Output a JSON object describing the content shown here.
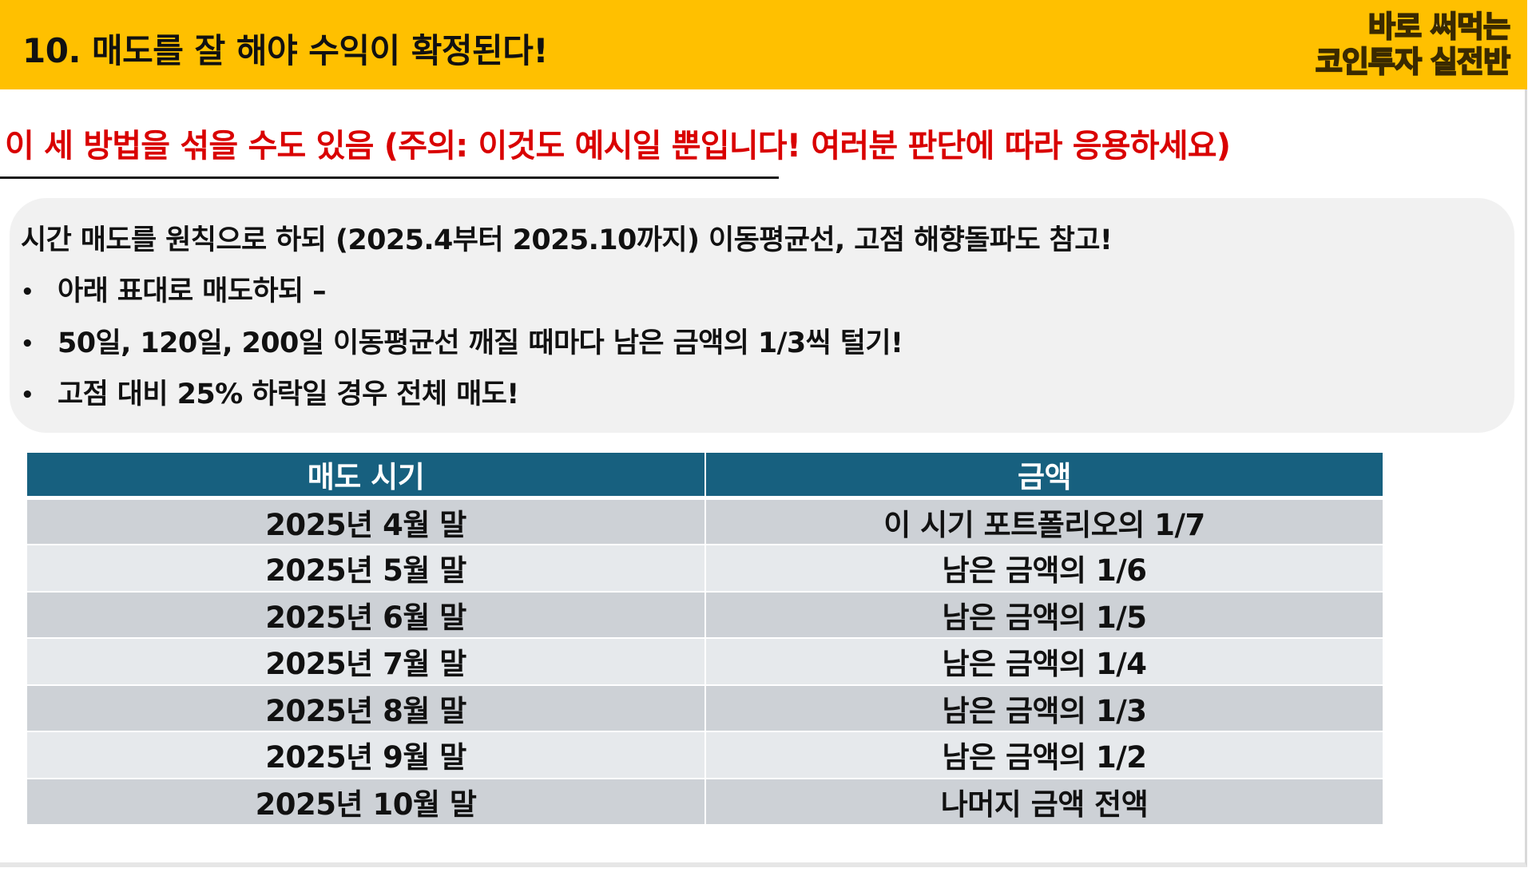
{
  "header": {
    "title": "10. 매도를 잘 해야 수익이 확정된다!",
    "brand_line1": "바로 써먹는",
    "brand_line2": "코인투자 실전반",
    "band_color": "#FFC000"
  },
  "subtitle": {
    "text": "이 세 방법을 섞을 수도 있음 (주의: 이것도 예시일 뿐입니다! 여러분 판단에 따라 응용하세요)",
    "color": "#D90000"
  },
  "notes": {
    "lead": "시간 매도를 원칙으로 하되 (2025.4부터 2025.10까지) 이동평균선, 고점 해향돌파도 참고!",
    "bullets": [
      "아래 표대로 매도하되 –",
      "50일, 120일, 200일 이동평균선 깨질 때마다 남은 금액의 1/3씩 털기!",
      "고점 대비 25% 하락일 경우 전체 매도!"
    ],
    "bullet_glyph": "•"
  },
  "table": {
    "header_color": "#17607F",
    "columns": [
      "매도 시기",
      "금액"
    ],
    "rows": [
      [
        "2025년 4월 말",
        "이 시기 포트폴리오의 1/7"
      ],
      [
        "2025년 5월 말",
        "남은 금액의 1/6"
      ],
      [
        "2025년 6월 말",
        "남은 금액의 1/5"
      ],
      [
        "2025년 7월 말",
        "남은 금액의 1/4"
      ],
      [
        "2025년 8월 말",
        "남은 금액의 1/3"
      ],
      [
        "2025년 9월 말",
        "남은 금액의 1/2"
      ],
      [
        "2025년 10월 말",
        "나머지 금액 전액"
      ]
    ]
  }
}
